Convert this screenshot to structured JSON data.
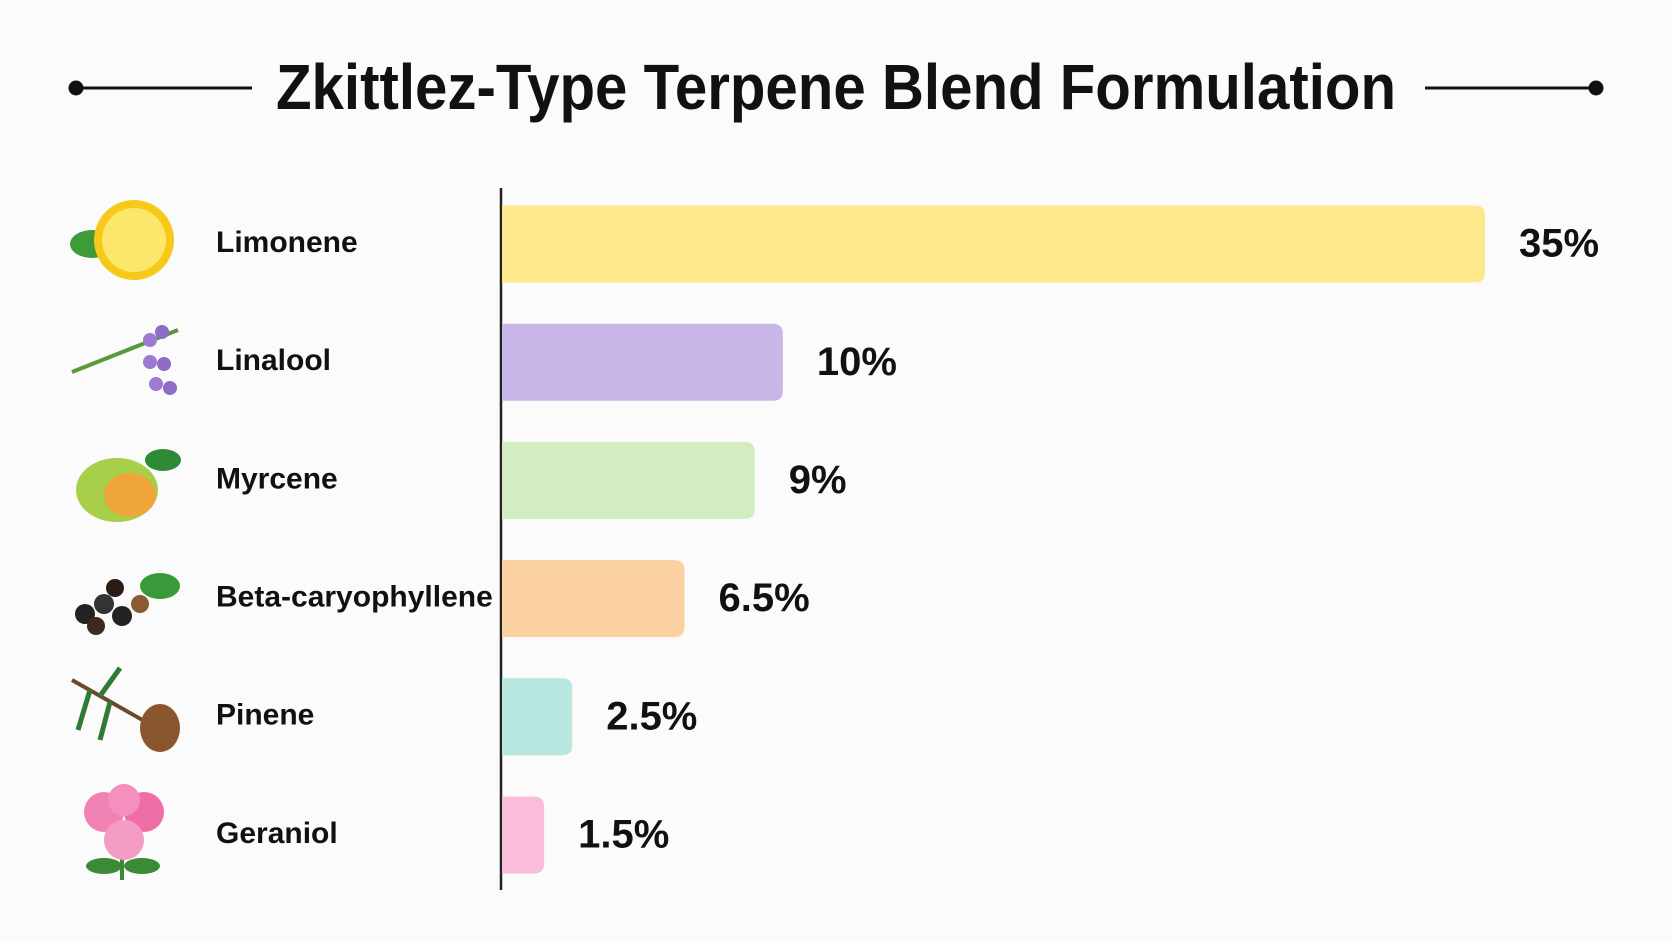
{
  "chart_data": {
    "type": "bar",
    "orientation": "horizontal",
    "title": "Zkittlez-Type Terpene Blend Formulation",
    "categories": [
      "Limonene",
      "Linalool",
      "Myrcene",
      "Beta-caryophyllene",
      "Pinene",
      "Geraniol"
    ],
    "values": [
      35,
      10,
      9,
      6.5,
      2.5,
      1.5
    ],
    "value_labels": [
      "35%",
      "10%",
      "9%",
      "6.5%",
      "2.5%",
      "1.5%"
    ],
    "colors": [
      "#fde98c",
      "#c7b6e6",
      "#d4ecc2",
      "#fbd1a2",
      "#b7e7df",
      "#f9bddb"
    ]
  }
}
